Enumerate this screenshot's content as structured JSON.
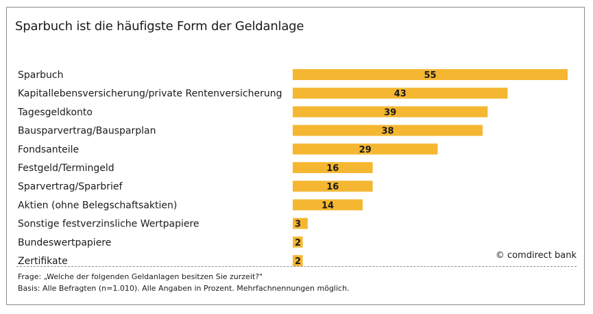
{
  "chart_data": {
    "type": "bar",
    "orientation": "horizontal",
    "title": "Sparbuch ist die häufigste Form der Geldanlage",
    "categories": [
      "Sparbuch",
      "Kapitallebensversicherung/private Rentenversicherung",
      "Tagesgeldkonto",
      "Bausparvertrag/Bausparplan",
      "Fondsanteile",
      "Festgeld/Termingeld",
      "Sparvertrag/Sparbrief",
      "Aktien (ohne Belegschaftsaktien)",
      "Sonstige festverzinsliche Wertpapiere",
      "Bundeswertpapiere",
      "Zertifikate"
    ],
    "values": [
      55,
      43,
      39,
      38,
      29,
      16,
      16,
      14,
      3,
      2,
      2
    ],
    "xlim": [
      0,
      55
    ],
    "grid": false,
    "bar_color": "#f5b731"
  },
  "credit": "© comdirect bank",
  "footnote": {
    "question": "Frage: „Welche der folgenden Geldanlagen besitzen Sie zurzeit?\"",
    "basis": "Basis: Alle Befragten (n=1.010). Alle Angaben in Prozent. Mehrfachnennungen möglich."
  }
}
